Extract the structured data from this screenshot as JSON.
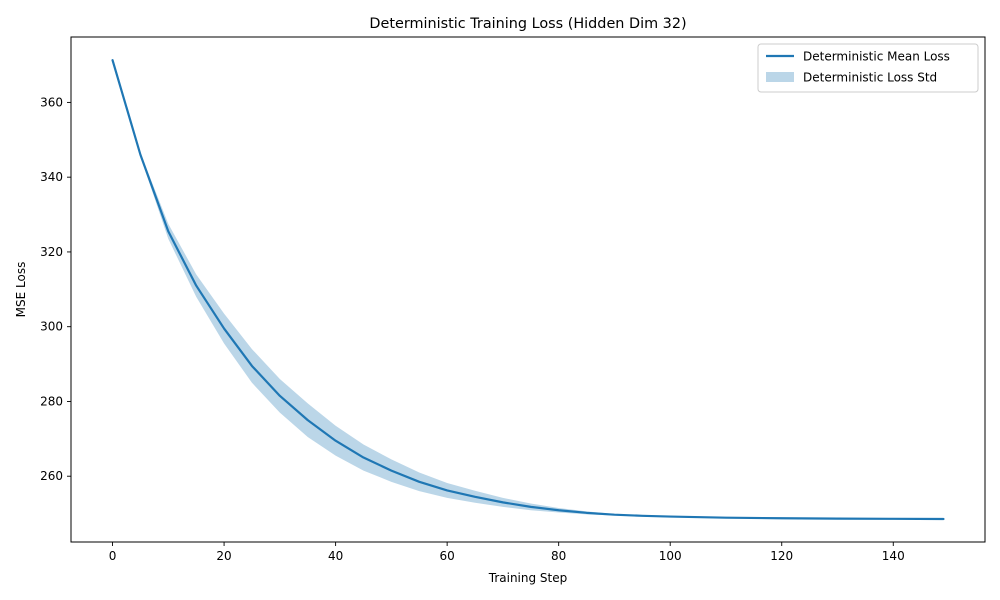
{
  "chart_data": {
    "type": "line",
    "title": "Deterministic Training Loss (Hidden Dim 32)",
    "xlabel": "Training Step",
    "ylabel": "MSE Loss",
    "xlim": [
      -7.45,
      156.45
    ],
    "ylim": [
      242.4,
      377.5
    ],
    "xticks": [
      0,
      20,
      40,
      60,
      80,
      100,
      120,
      140
    ],
    "yticks": [
      260,
      280,
      300,
      320,
      340,
      360
    ],
    "grid": false,
    "legend_position": "top-right",
    "colors": {
      "line": "#1f77b4",
      "band": "#1f77b4"
    },
    "series": [
      {
        "name": "Deterministic Mean Loss",
        "kind": "line",
        "x": [
          0,
          5,
          10,
          15,
          20,
          25,
          30,
          35,
          40,
          45,
          50,
          55,
          60,
          65,
          70,
          75,
          80,
          85,
          90,
          95,
          100,
          110,
          120,
          130,
          140,
          149
        ],
        "y": [
          371.3,
          346.0,
          325.5,
          311.0,
          299.5,
          289.5,
          281.5,
          275.0,
          269.5,
          265.0,
          261.5,
          258.5,
          256.2,
          254.5,
          253.0,
          251.8,
          250.9,
          250.2,
          249.7,
          249.4,
          249.2,
          248.9,
          248.75,
          248.65,
          248.6,
          248.55
        ]
      },
      {
        "name": "Deterministic Loss Std",
        "kind": "band",
        "x": [
          0,
          5,
          10,
          15,
          20,
          25,
          30,
          35,
          40,
          45,
          50,
          55,
          60,
          65,
          70,
          75,
          80,
          85,
          90,
          95,
          100,
          110,
          120,
          130,
          140,
          149
        ],
        "lower": [
          371.3,
          345.5,
          323.5,
          308.0,
          295.5,
          285.0,
          277.0,
          270.5,
          265.5,
          261.5,
          258.5,
          256.0,
          254.2,
          252.9,
          251.8,
          250.9,
          250.3,
          249.8,
          249.5,
          249.2,
          249.0,
          248.8,
          248.7,
          248.6,
          248.55,
          248.5
        ],
        "upper": [
          371.3,
          346.5,
          327.5,
          314.0,
          303.5,
          294.0,
          286.0,
          279.5,
          273.5,
          268.5,
          264.5,
          261.0,
          258.2,
          256.1,
          254.2,
          252.7,
          251.5,
          250.6,
          249.9,
          249.6,
          249.4,
          249.0,
          248.8,
          248.7,
          248.65,
          248.6
        ]
      }
    ]
  }
}
